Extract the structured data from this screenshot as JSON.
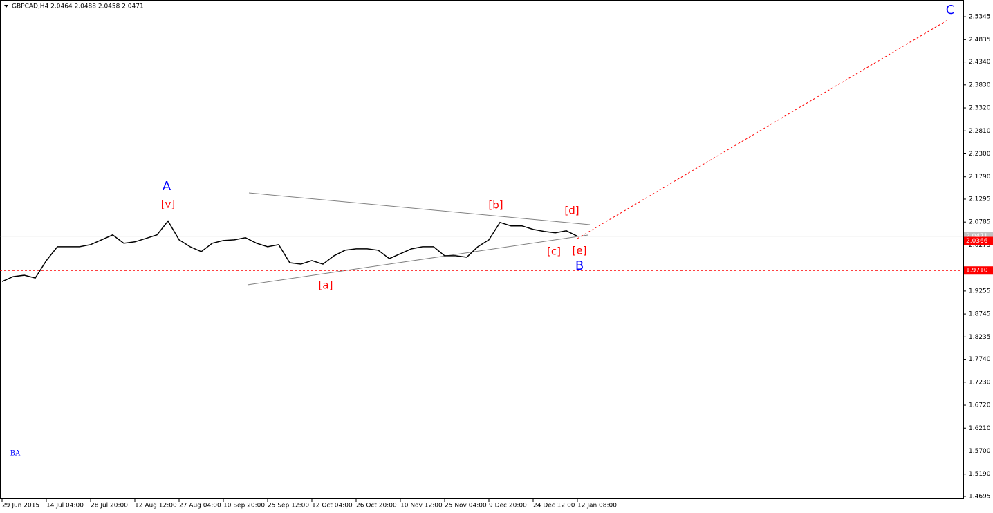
{
  "chart_data": {
    "type": "line",
    "title": "GBPCAD,H4  2.0464 2.0488 2.0458 2.0471",
    "categories": [
      "29 Jun 2015",
      null,
      null,
      null,
      "14 Jul 04:00",
      null,
      null,
      null,
      "28 Jul 20:00",
      null,
      null,
      null,
      "12 Aug 12:00",
      null,
      null,
      null,
      "27 Aug 04:00",
      null,
      null,
      null,
      "10 Sep 20:00",
      null,
      null,
      null,
      "25 Sep 12:00",
      null,
      null,
      null,
      "12 Oct 04:00",
      null,
      null,
      null,
      "26 Oct 20:00",
      null,
      null,
      null,
      "10 Nov 12:00",
      null,
      null,
      null,
      "25 Nov 04:00",
      null,
      null,
      null,
      "9 Dec 20:00",
      null,
      null,
      null,
      "24 Dec 12:00",
      null,
      null,
      null,
      "12 Jan 08:00"
    ],
    "series": [
      {
        "name": "GBPCAD,H4",
        "color": "#000000",
        "values": [
          1.9466,
          1.9574,
          1.9605,
          1.9543,
          1.9929,
          2.0237,
          2.0237,
          2.0237,
          2.0284,
          2.0391,
          2.05,
          2.0315,
          2.0346,
          2.0422,
          2.05,
          2.0808,
          2.0391,
          2.0237,
          2.0129,
          2.0315,
          2.0376,
          2.0391,
          2.0438,
          2.0315,
          2.0237,
          2.0284,
          1.9882,
          1.9851,
          1.9929,
          1.9851,
          2.0037,
          2.016,
          2.0191,
          2.0191,
          2.016,
          1.9975,
          2.0083,
          2.0191,
          2.0237,
          2.0237,
          2.0037,
          2.0037,
          2.0006,
          2.0237,
          2.0391,
          2.0777,
          2.07,
          2.07,
          2.0623,
          2.0577,
          2.0546,
          2.0592,
          2.0471
        ]
      }
    ],
    "ylim": [
      1.4633,
      2.5715
    ],
    "yticks": [
      2.5345,
      2.4835,
      {
        "value": 2.434,
        "label": "2.4340"
      },
      {
        "value": 2.383,
        "label": "2.3830"
      },
      {
        "value": 2.332,
        "label": "2.3320"
      },
      {
        "value": 2.281,
        "label": "2.2810"
      },
      {
        "value": 2.23,
        "label": "2.2300"
      },
      {
        "value": 2.179,
        "label": "2.1790"
      },
      2.1295,
      2.0785,
      2.0275,
      1.9255,
      1.8745,
      1.8235,
      {
        "value": 1.774,
        "label": "1.7740"
      },
      {
        "value": 1.723,
        "label": "1.7230"
      },
      {
        "value": 1.672,
        "label": "1.6720"
      },
      {
        "value": 1.621,
        "label": "1.6210"
      },
      {
        "value": 1.57,
        "label": "1.5700"
      },
      {
        "value": 1.519,
        "label": "1.5190"
      },
      1.4695
    ],
    "price_levels": [
      {
        "value": 2.0471,
        "label": "2.0471",
        "color": "#c0c0c0"
      },
      {
        "value": 2.0366,
        "label": "2.0366",
        "color": "#ff0000"
      },
      {
        "value": 1.971,
        "label": "1.9710",
        "color": "#ff0000"
      }
    ],
    "annotations": [
      {
        "text": "A",
        "color": "#0000ff"
      },
      {
        "text": "[v]",
        "color": "#ff0000"
      },
      {
        "text": "[a]",
        "color": "#ff0000"
      },
      {
        "text": "[b]",
        "color": "#ff0000"
      },
      {
        "text": "[c]",
        "color": "#ff0000"
      },
      {
        "text": "[d]",
        "color": "#ff0000"
      },
      {
        "text": "[e]",
        "color": "#ff0000"
      },
      {
        "text": "B",
        "color": "#0000ff"
      },
      {
        "text": "C",
        "color": "#0000ff"
      },
      {
        "text": "BA",
        "color": "#0000ff"
      }
    ]
  }
}
